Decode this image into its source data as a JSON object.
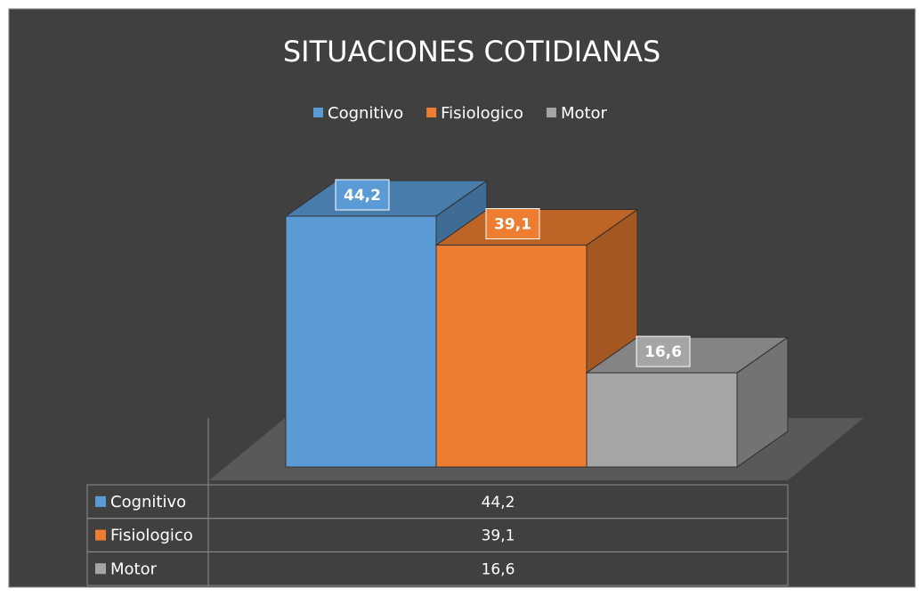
{
  "chart_data": {
    "type": "bar3d",
    "title": "SITUACIONES COTIDIANAS",
    "legend": "top",
    "series": [
      {
        "name": "Cognitivo",
        "color": "#5b9bd5",
        "values": [
          44.2
        ],
        "value_labels": [
          "44,2"
        ]
      },
      {
        "name": "Fisiologico",
        "color": "#ed7d31",
        "values": [
          39.1
        ],
        "value_labels": [
          "39,1"
        ]
      },
      {
        "name": "Motor",
        "color": "#a5a5a5",
        "values": [
          16.6
        ],
        "value_labels": [
          "16,6"
        ]
      }
    ],
    "data_table": true
  }
}
